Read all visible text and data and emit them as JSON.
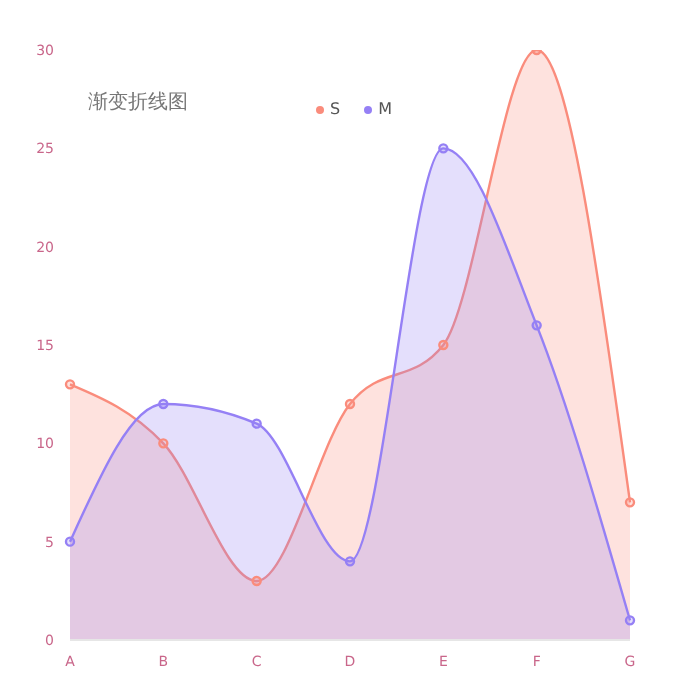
{
  "chart_data": {
    "type": "area",
    "title": "渐变折线图",
    "categories": [
      "A",
      "B",
      "C",
      "D",
      "E",
      "F",
      "G"
    ],
    "series": [
      {
        "name": "S",
        "color": "#fa8c7c",
        "values": [
          13,
          10,
          3,
          12,
          15,
          30,
          7
        ]
      },
      {
        "name": "M",
        "color": "#9580f5",
        "values": [
          5,
          12,
          11,
          4,
          25,
          16,
          1
        ]
      }
    ],
    "ylim": [
      0,
      30
    ],
    "yticks": [
      0,
      5,
      10,
      15,
      20,
      25,
      30
    ],
    "grid": false,
    "legend": "top",
    "marker": "circle"
  }
}
